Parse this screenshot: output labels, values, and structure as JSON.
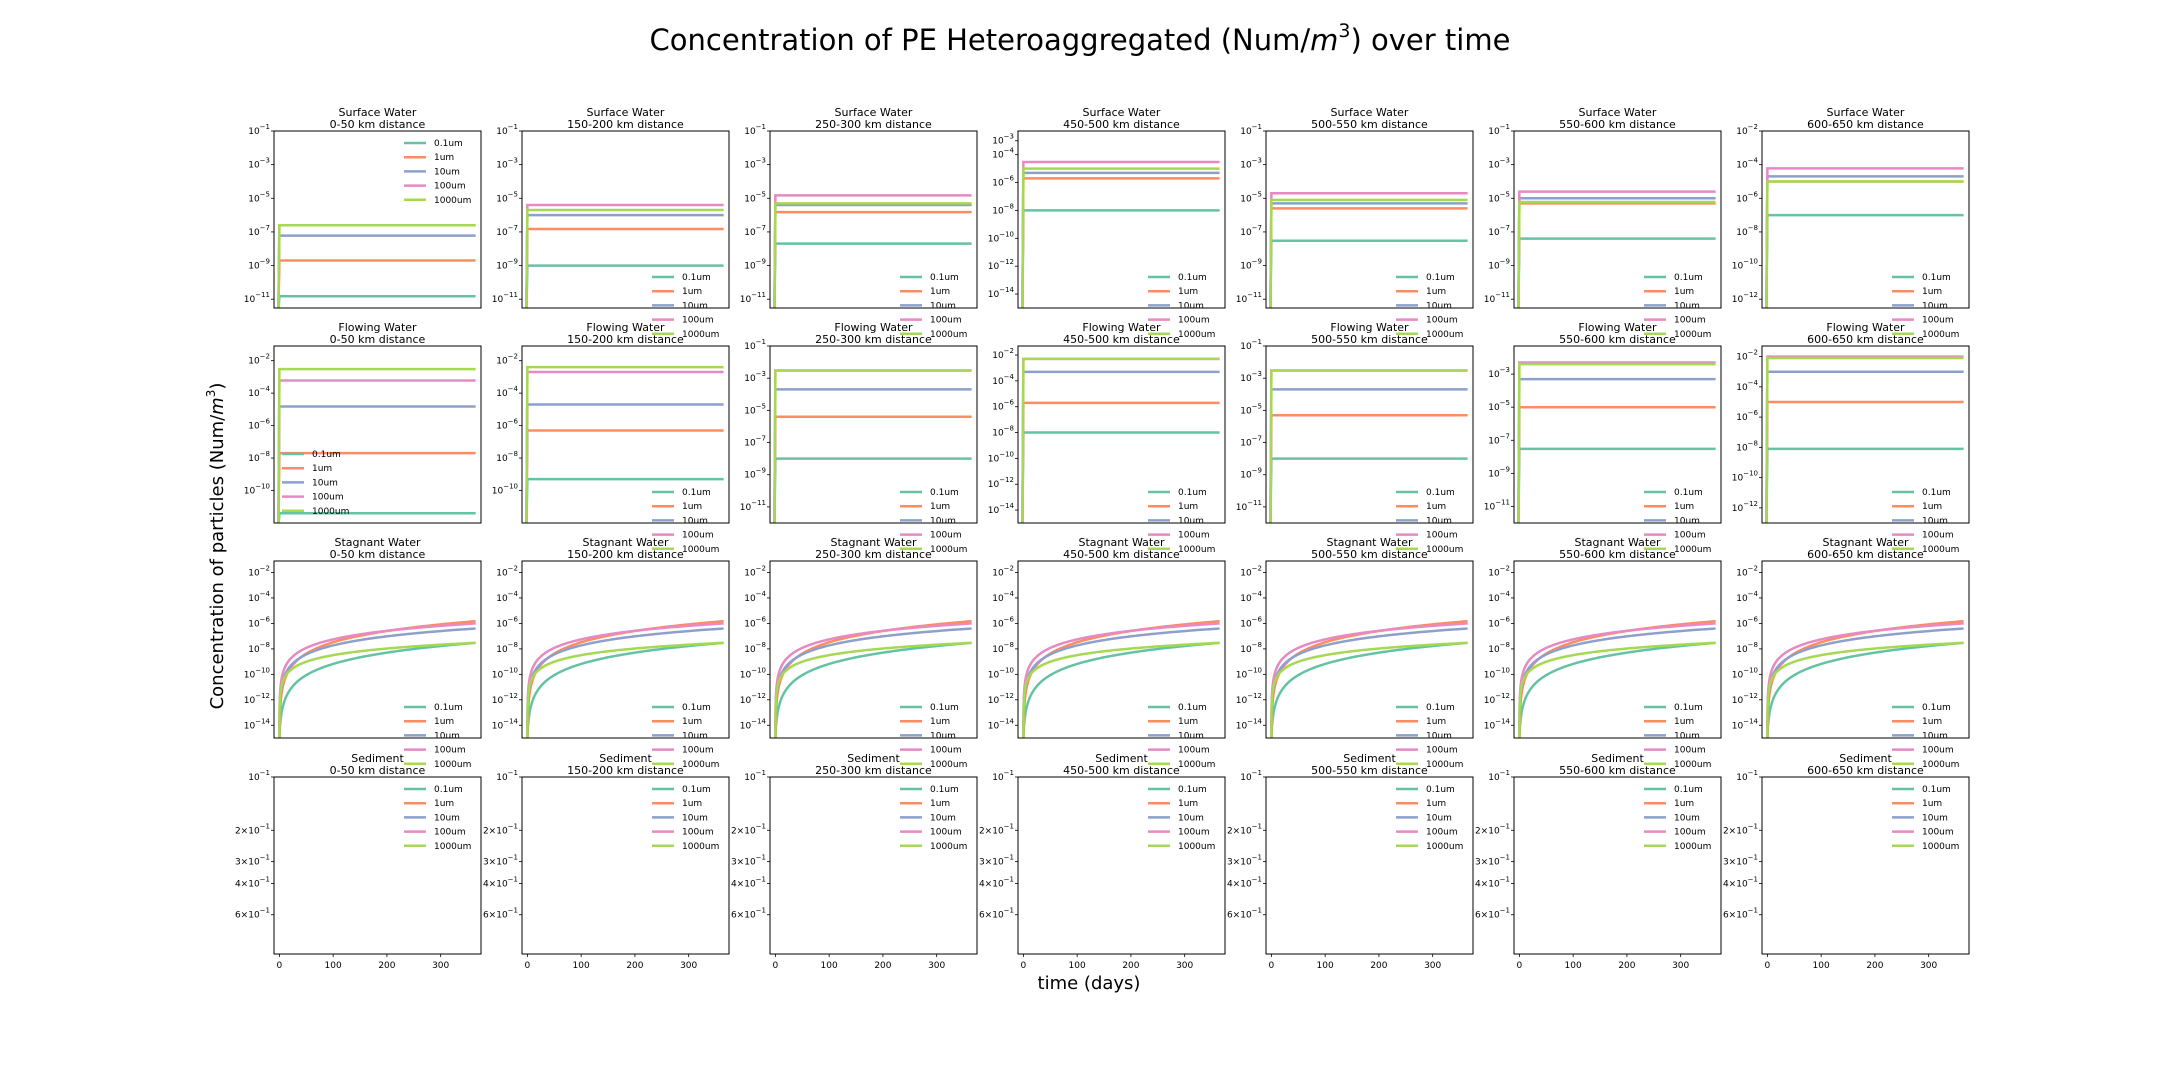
{
  "figure": {
    "title": "Concentration of PE Heteroaggregated (Num/m³) over time",
    "title_prefix": "Concentration of PE Heteroaggregated (Num/",
    "title_math": "m",
    "title_sup": "3",
    "title_suffix": ") over time",
    "ylabel": "Concentration of particles (Num/m³)",
    "ylabel_prefix": "Concentration of particles (Num/",
    "ylabel_math": "m",
    "ylabel_sup": "3",
    "ylabel_suffix": ")",
    "xlabel": "time (days)"
  },
  "compartments": [
    "Surface Water",
    "Flowing Water",
    "Stagnant Water",
    "Sediment"
  ],
  "distances": [
    "0-50 km distance",
    "150-200 km distance",
    "250-300 km distance",
    "450-500 km distance",
    "500-550 km distance",
    "550-600 km distance",
    "600-650 km distance"
  ],
  "legend": [
    {
      "name": "0.1um",
      "color": "#66c2a5"
    },
    {
      "name": "1um",
      "color": "#fc8d62"
    },
    {
      "name": "10um",
      "color": "#8da0cb"
    },
    {
      "name": "100um",
      "color": "#e78ac3"
    },
    {
      "name": "1000um",
      "color": "#a6d854"
    }
  ],
  "x_ticks": [
    "0",
    "100",
    "200",
    "300"
  ],
  "chart_data": {
    "type": "line",
    "layout": "small-multiples 4 rows (compartments) x 7 columns (distances)",
    "x_unit": "days",
    "xlim": [
      -10,
      375
    ],
    "y_scale": "log",
    "grid": false,
    "legend_placement": {
      "Surface Water": "lower-right (upper-right in 0-50 km panel)",
      "Flowing Water": "lower-right (lower-left in 0-50 km panel)",
      "Stagnant Water": "lower-right",
      "Sediment": "upper-right"
    },
    "series_names": [
      "0.1um",
      "1um",
      "10um",
      "100um",
      "1000um"
    ],
    "steady_state_levels": {
      "Surface Water": [
        {
          "distance": "0-50 km distance",
          "ylim": [
            3e-12,
            0.1
          ],
          "y_ticks": [
            "10^{-1}",
            "10^{-3}",
            "10^{-5}",
            "10^{-7}",
            "10^{-9}",
            "10^{-11}"
          ],
          "values": {
            "0.1um": 1.5e-11,
            "1um": 2e-09,
            "10um": 6e-08,
            "100um": 2.5e-07,
            "1000um": 2.5e-07
          }
        },
        {
          "distance": "150-200 km distance",
          "ylim": [
            3e-12,
            0.1
          ],
          "y_ticks": [
            "10^{-1}",
            "10^{-3}",
            "10^{-5}",
            "10^{-7}",
            "10^{-9}",
            "10^{-11}"
          ],
          "values": {
            "0.1um": 1e-09,
            "1um": 1.5e-07,
            "10um": 1e-06,
            "100um": 4e-06,
            "1000um": 2e-06
          }
        },
        {
          "distance": "250-300 km distance",
          "ylim": [
            3e-12,
            0.1
          ],
          "y_ticks": [
            "10^{-1}",
            "10^{-3}",
            "10^{-5}",
            "10^{-7}",
            "10^{-9}",
            "10^{-11}"
          ],
          "values": {
            "0.1um": 2e-08,
            "1um": 1.5e-06,
            "10um": 4e-06,
            "100um": 1.5e-05,
            "1000um": 5e-06
          }
        },
        {
          "distance": "450-500 km distance",
          "ylim": [
            1e-15,
            0.005
          ],
          "y_ticks": [
            "10^{-3}",
            "10^{-4}",
            "10^{-6}",
            "10^{-8}",
            "10^{-10}",
            "10^{-12}",
            "10^{-14}"
          ],
          "values": {
            "0.1um": 1e-08,
            "1um": 2e-06,
            "10um": 5e-06,
            "100um": 3e-05,
            "1000um": 1e-05
          }
        },
        {
          "distance": "500-550 km distance",
          "ylim": [
            3e-12,
            0.1
          ],
          "y_ticks": [
            "10^{-1}",
            "10^{-3}",
            "10^{-5}",
            "10^{-7}",
            "10^{-9}",
            "10^{-11}"
          ],
          "values": {
            "0.1um": 3e-08,
            "1um": 2.5e-06,
            "10um": 5e-06,
            "100um": 2e-05,
            "1000um": 8e-06
          }
        },
        {
          "distance": "550-600 km distance",
          "ylim": [
            3e-12,
            0.1
          ],
          "y_ticks": [
            "10^{-1}",
            "10^{-3}",
            "10^{-5}",
            "10^{-7}",
            "10^{-9}",
            "10^{-11}"
          ],
          "values": {
            "0.1um": 4e-08,
            "1um": 5e-06,
            "10um": 1e-05,
            "100um": 2.5e-05,
            "1000um": 6e-06
          }
        },
        {
          "distance": "600-650 km distance",
          "ylim": [
            3e-13,
            0.01
          ],
          "y_ticks": [
            "10^{-2}",
            "10^{-4}",
            "10^{-6}",
            "10^{-8}",
            "10^{-10}",
            "10^{-12}"
          ],
          "values": {
            "0.1um": 1e-07,
            "1um": 1e-05,
            "10um": 2e-05,
            "100um": 6e-05,
            "1000um": 1e-05
          }
        }
      ],
      "Flowing Water": [
        {
          "distance": "0-50 km distance",
          "ylim": [
            1e-12,
            0.08
          ],
          "y_ticks": [
            "10^{-2}",
            "10^{-4}",
            "10^{-6}",
            "10^{-8}",
            "10^{-10}"
          ],
          "values": {
            "0.1um": 4e-12,
            "1um": 2e-08,
            "10um": 1.5e-05,
            "100um": 0.0006,
            "1000um": 0.003
          }
        },
        {
          "distance": "150-200 km distance",
          "ylim": [
            1e-12,
            0.08
          ],
          "y_ticks": [
            "10^{-2}",
            "10^{-4}",
            "10^{-6}",
            "10^{-8}",
            "10^{-10}"
          ],
          "values": {
            "0.1um": 5e-10,
            "1um": 5e-07,
            "10um": 2e-05,
            "100um": 0.002,
            "1000um": 0.004
          }
        },
        {
          "distance": "250-300 km distance",
          "ylim": [
            1e-12,
            0.1
          ],
          "y_ticks": [
            "10^{-1}",
            "10^{-3}",
            "10^{-5}",
            "10^{-7}",
            "10^{-9}",
            "10^{-11}"
          ],
          "values": {
            "0.1um": 1e-08,
            "1um": 4e-06,
            "10um": 0.0002,
            "100um": 0.003,
            "1000um": 0.003
          }
        },
        {
          "distance": "450-500 km distance",
          "ylim": [
            1e-15,
            0.05
          ],
          "y_ticks": [
            "10^{-2}",
            "10^{-4}",
            "10^{-6}",
            "10^{-8}",
            "10^{-10}",
            "10^{-12}",
            "10^{-14}"
          ],
          "values": {
            "0.1um": 1e-08,
            "1um": 2e-06,
            "10um": 0.0005,
            "100um": 0.005,
            "1000um": 0.005
          }
        },
        {
          "distance": "500-550 km distance",
          "ylim": [
            1e-12,
            0.1
          ],
          "y_ticks": [
            "10^{-1}",
            "10^{-3}",
            "10^{-5}",
            "10^{-7}",
            "10^{-9}",
            "10^{-11}"
          ],
          "values": {
            "0.1um": 1e-08,
            "1um": 5e-06,
            "10um": 0.0002,
            "100um": 0.003,
            "1000um": 0.003
          }
        },
        {
          "distance": "550-600 km distance",
          "ylim": [
            1e-12,
            0.05
          ],
          "y_ticks": [
            "10^{-1}",
            "10^{-3}",
            "10^{-5}",
            "10^{-7}",
            "10^{-9}",
            "10^{-11}"
          ],
          "values": {
            "0.1um": 3e-08,
            "1um": 1e-05,
            "10um": 0.0005,
            "100um": 0.005,
            "1000um": 0.004
          }
        },
        {
          "distance": "600-650 km distance",
          "ylim": [
            1e-13,
            0.05
          ],
          "y_ticks": [
            "10^{-2}",
            "10^{-4}",
            "10^{-6}",
            "10^{-8}",
            "10^{-10}",
            "10^{-12}"
          ],
          "values": {
            "0.1um": 8e-09,
            "1um": 1e-05,
            "10um": 0.001,
            "100um": 0.01,
            "1000um": 0.008
          }
        }
      ],
      "Sediment": [
        {
          "distance": "all",
          "ylim": [
            0.1,
            1.0
          ],
          "y_ticks": [
            "10^{-1}",
            "2×10^{-1}",
            "3×10^{-1}",
            "4×10^{-1}",
            "6×10^{-1}"
          ],
          "values": {}
        }
      ]
    },
    "stagnant_water_final_values": {
      "note": "same shape in every distance panel; curves rise from ~1e-15 at t≈0",
      "ylim": [
        1e-15,
        0.08
      ],
      "y_ticks": [
        "10^{-2}",
        "10^{-4}",
        "10^{-6}",
        "10^{-8}",
        "10^{-10}",
        "10^{-12}",
        "10^{-14}"
      ],
      "values_at_365_days": {
        "0.1um": 3e-08,
        "1um": 1.5e-06,
        "10um": 4e-07,
        "100um": 1e-06,
        "1000um": 3e-08
      }
    }
  }
}
